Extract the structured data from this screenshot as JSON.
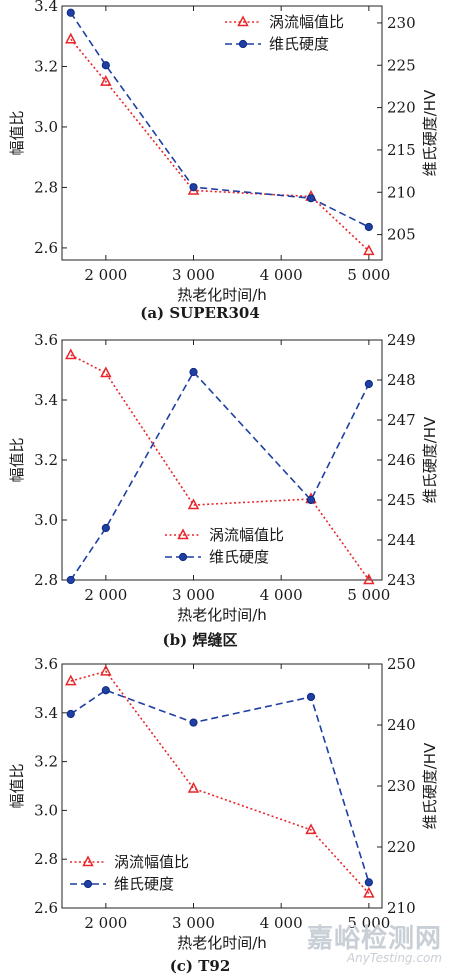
{
  "chart_data": [
    {
      "type": "line",
      "caption": "(a) SUPER304",
      "xlabel": "热老化时间/h",
      "ylabel_left": "幅值比",
      "ylabel_right": "维氏硬度/HV",
      "x": [
        1600,
        2000,
        3000,
        4340,
        5000
      ],
      "xlim": [
        1500,
        5150
      ],
      "xticks": [
        2000,
        3000,
        4000,
        5000
      ],
      "xtick_labels": [
        "2 000",
        "3 000",
        "4 000",
        "5 000"
      ],
      "ylim_left": [
        2.56,
        3.4
      ],
      "yticks_left": [
        2.6,
        2.8,
        3.0,
        3.2,
        3.4
      ],
      "ytick_labels_left": [
        "2.6",
        "2.8",
        "3.0",
        "3.2",
        "3.4"
      ],
      "ylim_right": [
        202,
        232
      ],
      "yticks_right": [
        205,
        210,
        215,
        220,
        225,
        230
      ],
      "ytick_labels_right": [
        "205",
        "210",
        "215",
        "220",
        "225",
        "230"
      ],
      "legend_position": "top-right",
      "series": [
        {
          "name": "涡流幅值比",
          "axis": "left",
          "values": [
            3.29,
            3.15,
            2.79,
            2.77,
            2.59
          ],
          "color": "#e8262a",
          "marker": "triangle",
          "style": "dotted"
        },
        {
          "name": "维氏硬度",
          "axis": "right",
          "values": [
            231.2,
            225.0,
            210.6,
            209.3,
            205.9
          ],
          "color": "#1f3fa3",
          "marker": "circle",
          "style": "dashed"
        }
      ]
    },
    {
      "type": "line",
      "caption": "(b) 焊缝区",
      "xlabel": "热老化时间/h",
      "ylabel_left": "幅值比",
      "ylabel_right": "维氏硬度/HV",
      "x": [
        1600,
        2000,
        3000,
        4340,
        5000
      ],
      "xlim": [
        1500,
        5150
      ],
      "xticks": [
        2000,
        3000,
        4000,
        5000
      ],
      "xtick_labels": [
        "2 000",
        "3 000",
        "4 000",
        "5 000"
      ],
      "ylim_left": [
        2.8,
        3.6
      ],
      "yticks_left": [
        2.8,
        3.0,
        3.2,
        3.4,
        3.6
      ],
      "ytick_labels_left": [
        "2.8",
        "3.0",
        "3.2",
        "3.4",
        "3.6"
      ],
      "ylim_right": [
        243,
        249
      ],
      "yticks_right": [
        243,
        244,
        245,
        246,
        247,
        248,
        249
      ],
      "ytick_labels_right": [
        "243",
        "244",
        "245",
        "246",
        "247",
        "248",
        "249"
      ],
      "legend_position": "bottom-center",
      "series": [
        {
          "name": "涡流幅值比",
          "axis": "left",
          "values": [
            3.55,
            3.49,
            3.05,
            3.07,
            2.8
          ],
          "color": "#e8262a",
          "marker": "triangle",
          "style": "dotted"
        },
        {
          "name": "维氏硬度",
          "axis": "right",
          "values": [
            243.0,
            244.3,
            248.2,
            245.0,
            247.9
          ],
          "color": "#1f3fa3",
          "marker": "circle",
          "style": "dashed"
        }
      ]
    },
    {
      "type": "line",
      "caption": "(c) T92",
      "xlabel": "热老化时间/h",
      "ylabel_left": "幅值比",
      "ylabel_right": "维氏硬度/HV",
      "x": [
        1600,
        2000,
        3000,
        4340,
        5000
      ],
      "xlim": [
        1500,
        5150
      ],
      "xticks": [
        2000,
        3000,
        4000,
        5000
      ],
      "xtick_labels": [
        "2 000",
        "3 000",
        "4 000",
        "5 000"
      ],
      "ylim_left": [
        2.6,
        3.6
      ],
      "yticks_left": [
        2.6,
        2.8,
        3.0,
        3.2,
        3.4,
        3.6
      ],
      "ytick_labels_left": [
        "2.6",
        "2.8",
        "3.0",
        "3.2",
        "3.4",
        "3.6"
      ],
      "ylim_right": [
        210,
        250
      ],
      "yticks_right": [
        210,
        220,
        230,
        240,
        250
      ],
      "ytick_labels_right": [
        "210",
        "220",
        "230",
        "240",
        "250"
      ],
      "legend_position": "bottom-left",
      "series": [
        {
          "name": "涡流幅值比",
          "axis": "left",
          "values": [
            3.53,
            3.57,
            3.09,
            2.92,
            2.66
          ],
          "color": "#e8262a",
          "marker": "triangle",
          "style": "dotted"
        },
        {
          "name": "维氏硬度",
          "axis": "right",
          "values": [
            241.8,
            245.7,
            240.4,
            244.6,
            214.2
          ],
          "color": "#1f3fa3",
          "marker": "circle",
          "style": "dashed"
        }
      ]
    }
  ],
  "watermark": {
    "text_cn": "嘉峪检测网",
    "text_en": "AnyTesting.com"
  }
}
